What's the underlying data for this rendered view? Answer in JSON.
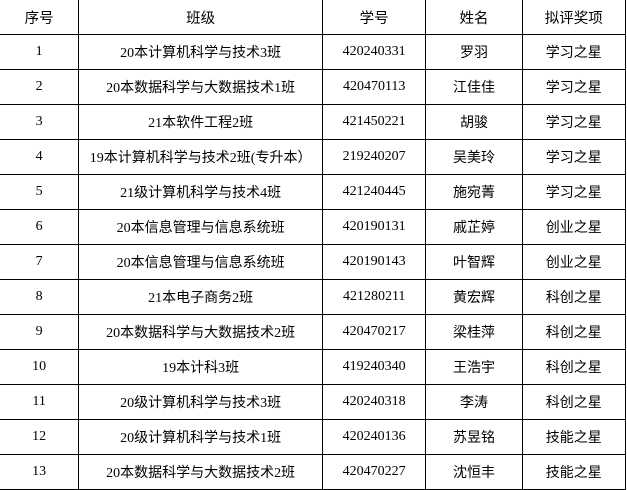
{
  "headers": [
    "序号",
    "班级",
    "学号",
    "姓名",
    "拟评奖项"
  ],
  "rows": [
    [
      "1",
      "20本计算机科学与技术3班",
      "420240331",
      "罗羽",
      "学习之星"
    ],
    [
      "2",
      "20本数据科学与大数据技术1班",
      "420470113",
      "江佳佳",
      "学习之星"
    ],
    [
      "3",
      "21本软件工程2班",
      "421450221",
      "胡骏",
      "学习之星"
    ],
    [
      "4",
      "19本计算机科学与技术2班(专升本）",
      "219240207",
      "吴美玲",
      "学习之星"
    ],
    [
      "5",
      "21级计算机科学与技术4班",
      "421240445",
      "施宛菁",
      "学习之星"
    ],
    [
      "6",
      "20本信息管理与信息系统班",
      "420190131",
      "戚芷婷",
      "创业之星"
    ],
    [
      "7",
      "20本信息管理与信息系统班",
      "420190143",
      "叶智辉",
      "创业之星"
    ],
    [
      "8",
      "21本电子商务2班",
      "421280211",
      "黄宏辉",
      "科创之星"
    ],
    [
      "9",
      "20本数据科学与大数据技术2班",
      "420470217",
      "梁桂萍",
      "科创之星"
    ],
    [
      "10",
      "19本计科3班",
      "419240340",
      "王浩宇",
      "科创之星"
    ],
    [
      "11",
      "20级计算机科学与技术3班",
      "420240318",
      "李涛",
      "科创之星"
    ],
    [
      "12",
      "20级计算机科学与技术1班",
      "420240136",
      "苏昱铭",
      "技能之星"
    ],
    [
      "13",
      "20本数据科学与大数据技术2班",
      "420470227",
      "沈恒丰",
      "技能之星"
    ]
  ]
}
